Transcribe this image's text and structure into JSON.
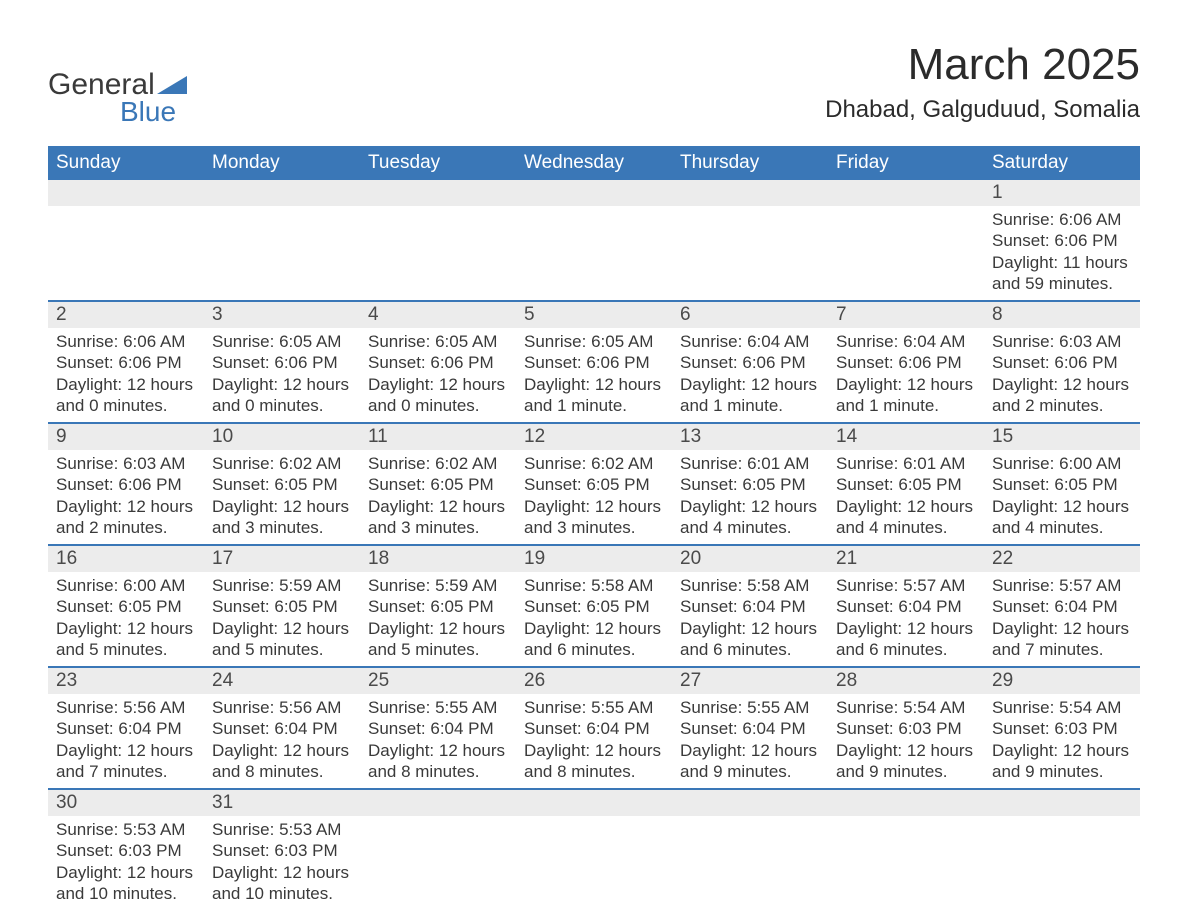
{
  "logo": {
    "text_general": "General",
    "text_blue": "Blue",
    "triangle_color": "#3a77b7"
  },
  "title": "March 2025",
  "location": "Dhabad, Galguduud, Somalia",
  "colors": {
    "header_bg": "#3a77b7",
    "header_text": "#ffffff",
    "daynum_bg": "#ececec",
    "row_border": "#3a77b7",
    "body_text": "#3a3a3a",
    "page_bg": "#ffffff"
  },
  "typography": {
    "title_fontsize": 44,
    "location_fontsize": 24,
    "header_fontsize": 19,
    "daynum_fontsize": 19,
    "detail_fontsize": 17
  },
  "day_headers": [
    "Sunday",
    "Monday",
    "Tuesday",
    "Wednesday",
    "Thursday",
    "Friday",
    "Saturday"
  ],
  "weeks": [
    [
      null,
      null,
      null,
      null,
      null,
      null,
      {
        "n": "1",
        "sr": "Sunrise: 6:06 AM",
        "ss": "Sunset: 6:06 PM",
        "d1": "Daylight: 11 hours",
        "d2": "and 59 minutes."
      }
    ],
    [
      {
        "n": "2",
        "sr": "Sunrise: 6:06 AM",
        "ss": "Sunset: 6:06 PM",
        "d1": "Daylight: 12 hours",
        "d2": "and 0 minutes."
      },
      {
        "n": "3",
        "sr": "Sunrise: 6:05 AM",
        "ss": "Sunset: 6:06 PM",
        "d1": "Daylight: 12 hours",
        "d2": "and 0 minutes."
      },
      {
        "n": "4",
        "sr": "Sunrise: 6:05 AM",
        "ss": "Sunset: 6:06 PM",
        "d1": "Daylight: 12 hours",
        "d2": "and 0 minutes."
      },
      {
        "n": "5",
        "sr": "Sunrise: 6:05 AM",
        "ss": "Sunset: 6:06 PM",
        "d1": "Daylight: 12 hours",
        "d2": "and 1 minute."
      },
      {
        "n": "6",
        "sr": "Sunrise: 6:04 AM",
        "ss": "Sunset: 6:06 PM",
        "d1": "Daylight: 12 hours",
        "d2": "and 1 minute."
      },
      {
        "n": "7",
        "sr": "Sunrise: 6:04 AM",
        "ss": "Sunset: 6:06 PM",
        "d1": "Daylight: 12 hours",
        "d2": "and 1 minute."
      },
      {
        "n": "8",
        "sr": "Sunrise: 6:03 AM",
        "ss": "Sunset: 6:06 PM",
        "d1": "Daylight: 12 hours",
        "d2": "and 2 minutes."
      }
    ],
    [
      {
        "n": "9",
        "sr": "Sunrise: 6:03 AM",
        "ss": "Sunset: 6:06 PM",
        "d1": "Daylight: 12 hours",
        "d2": "and 2 minutes."
      },
      {
        "n": "10",
        "sr": "Sunrise: 6:02 AM",
        "ss": "Sunset: 6:05 PM",
        "d1": "Daylight: 12 hours",
        "d2": "and 3 minutes."
      },
      {
        "n": "11",
        "sr": "Sunrise: 6:02 AM",
        "ss": "Sunset: 6:05 PM",
        "d1": "Daylight: 12 hours",
        "d2": "and 3 minutes."
      },
      {
        "n": "12",
        "sr": "Sunrise: 6:02 AM",
        "ss": "Sunset: 6:05 PM",
        "d1": "Daylight: 12 hours",
        "d2": "and 3 minutes."
      },
      {
        "n": "13",
        "sr": "Sunrise: 6:01 AM",
        "ss": "Sunset: 6:05 PM",
        "d1": "Daylight: 12 hours",
        "d2": "and 4 minutes."
      },
      {
        "n": "14",
        "sr": "Sunrise: 6:01 AM",
        "ss": "Sunset: 6:05 PM",
        "d1": "Daylight: 12 hours",
        "d2": "and 4 minutes."
      },
      {
        "n": "15",
        "sr": "Sunrise: 6:00 AM",
        "ss": "Sunset: 6:05 PM",
        "d1": "Daylight: 12 hours",
        "d2": "and 4 minutes."
      }
    ],
    [
      {
        "n": "16",
        "sr": "Sunrise: 6:00 AM",
        "ss": "Sunset: 6:05 PM",
        "d1": "Daylight: 12 hours",
        "d2": "and 5 minutes."
      },
      {
        "n": "17",
        "sr": "Sunrise: 5:59 AM",
        "ss": "Sunset: 6:05 PM",
        "d1": "Daylight: 12 hours",
        "d2": "and 5 minutes."
      },
      {
        "n": "18",
        "sr": "Sunrise: 5:59 AM",
        "ss": "Sunset: 6:05 PM",
        "d1": "Daylight: 12 hours",
        "d2": "and 5 minutes."
      },
      {
        "n": "19",
        "sr": "Sunrise: 5:58 AM",
        "ss": "Sunset: 6:05 PM",
        "d1": "Daylight: 12 hours",
        "d2": "and 6 minutes."
      },
      {
        "n": "20",
        "sr": "Sunrise: 5:58 AM",
        "ss": "Sunset: 6:04 PM",
        "d1": "Daylight: 12 hours",
        "d2": "and 6 minutes."
      },
      {
        "n": "21",
        "sr": "Sunrise: 5:57 AM",
        "ss": "Sunset: 6:04 PM",
        "d1": "Daylight: 12 hours",
        "d2": "and 6 minutes."
      },
      {
        "n": "22",
        "sr": "Sunrise: 5:57 AM",
        "ss": "Sunset: 6:04 PM",
        "d1": "Daylight: 12 hours",
        "d2": "and 7 minutes."
      }
    ],
    [
      {
        "n": "23",
        "sr": "Sunrise: 5:56 AM",
        "ss": "Sunset: 6:04 PM",
        "d1": "Daylight: 12 hours",
        "d2": "and 7 minutes."
      },
      {
        "n": "24",
        "sr": "Sunrise: 5:56 AM",
        "ss": "Sunset: 6:04 PM",
        "d1": "Daylight: 12 hours",
        "d2": "and 8 minutes."
      },
      {
        "n": "25",
        "sr": "Sunrise: 5:55 AM",
        "ss": "Sunset: 6:04 PM",
        "d1": "Daylight: 12 hours",
        "d2": "and 8 minutes."
      },
      {
        "n": "26",
        "sr": "Sunrise: 5:55 AM",
        "ss": "Sunset: 6:04 PM",
        "d1": "Daylight: 12 hours",
        "d2": "and 8 minutes."
      },
      {
        "n": "27",
        "sr": "Sunrise: 5:55 AM",
        "ss": "Sunset: 6:04 PM",
        "d1": "Daylight: 12 hours",
        "d2": "and 9 minutes."
      },
      {
        "n": "28",
        "sr": "Sunrise: 5:54 AM",
        "ss": "Sunset: 6:03 PM",
        "d1": "Daylight: 12 hours",
        "d2": "and 9 minutes."
      },
      {
        "n": "29",
        "sr": "Sunrise: 5:54 AM",
        "ss": "Sunset: 6:03 PM",
        "d1": "Daylight: 12 hours",
        "d2": "and 9 minutes."
      }
    ],
    [
      {
        "n": "30",
        "sr": "Sunrise: 5:53 AM",
        "ss": "Sunset: 6:03 PM",
        "d1": "Daylight: 12 hours",
        "d2": "and 10 minutes."
      },
      {
        "n": "31",
        "sr": "Sunrise: 5:53 AM",
        "ss": "Sunset: 6:03 PM",
        "d1": "Daylight: 12 hours",
        "d2": "and 10 minutes."
      },
      null,
      null,
      null,
      null,
      null
    ]
  ]
}
